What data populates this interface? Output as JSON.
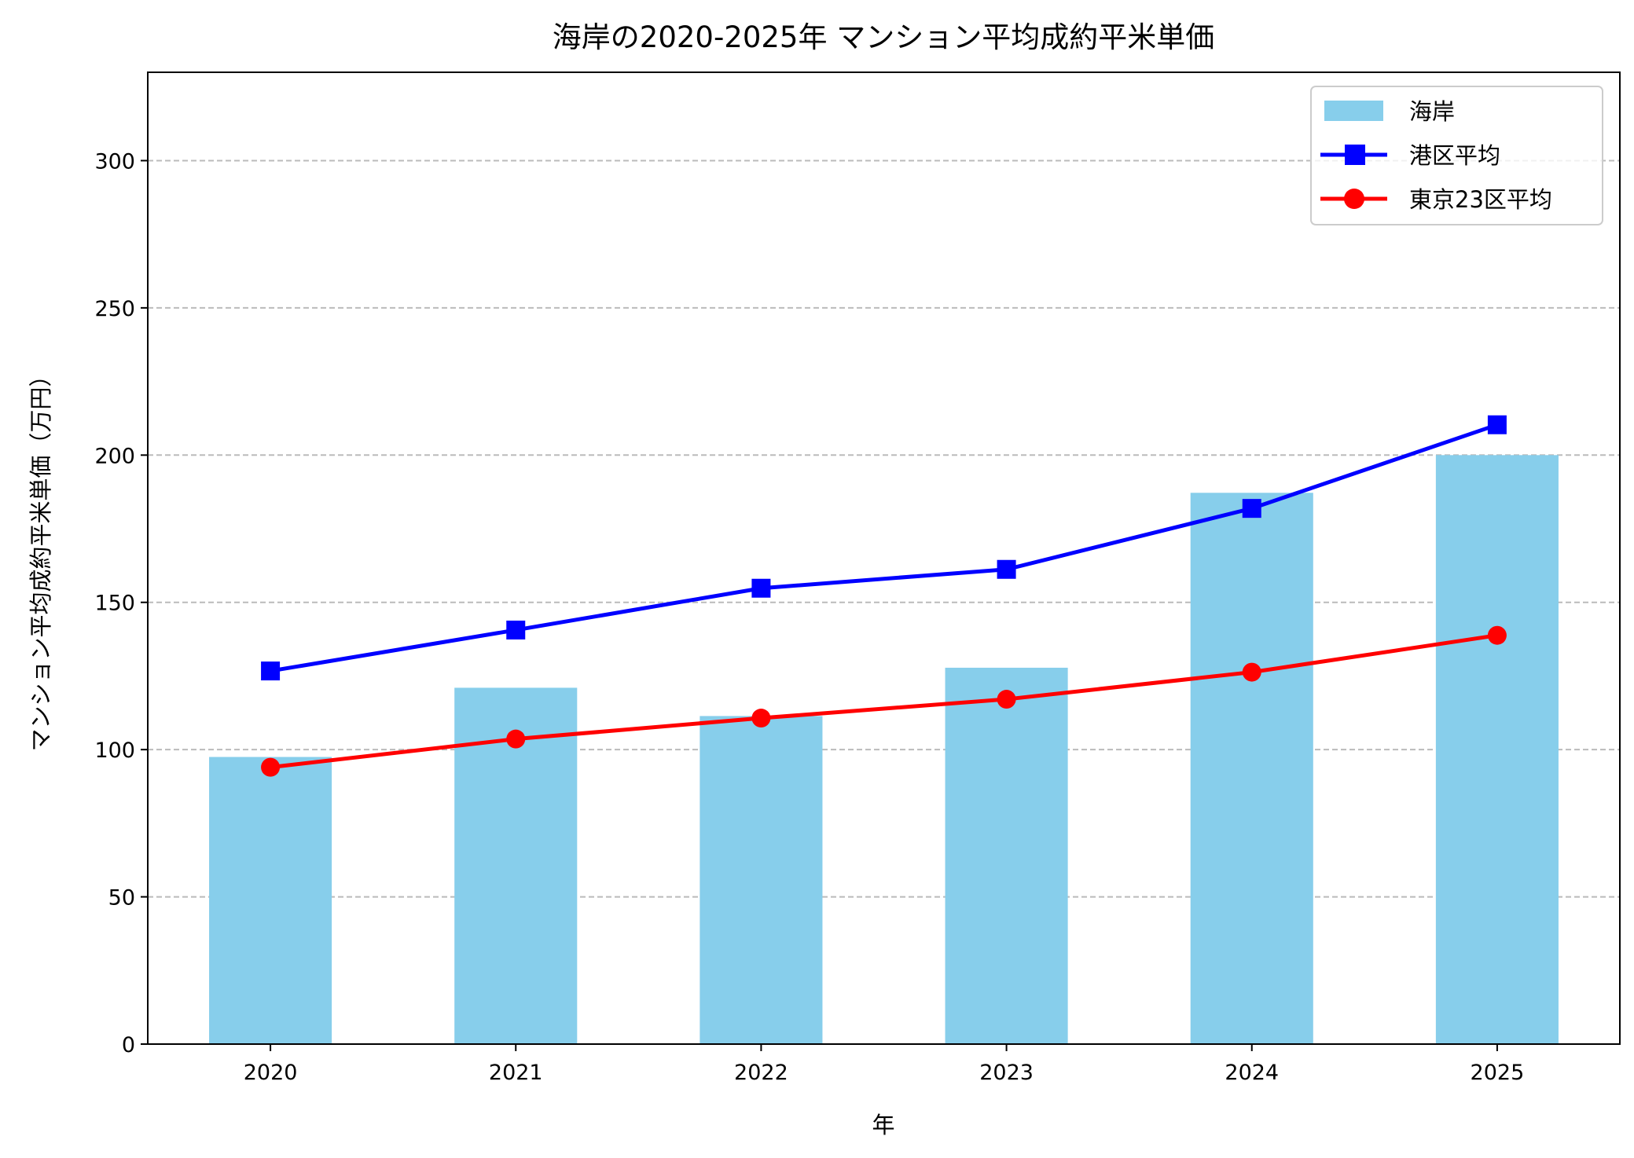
{
  "chart_data": {
    "type": "bar+line",
    "title": "海岸の2020-2025年 マンション平均成約平米単価",
    "xlabel": "年",
    "ylabel": "マンション平均成約平米単価（万円）",
    "categories": [
      "2020",
      "2021",
      "2022",
      "2023",
      "2024",
      "2025"
    ],
    "ylim": [
      0,
      330
    ],
    "yticks": [
      0,
      50,
      100,
      150,
      200,
      250,
      300
    ],
    "grid": "y-dashed",
    "legend_position": "top-right",
    "series": [
      {
        "name": "海岸",
        "kind": "bar",
        "color": "#87CEEB",
        "values": [
          97.5,
          121.0,
          111.4,
          127.8,
          187.2,
          200.0
        ]
      },
      {
        "name": "港区平均",
        "kind": "line",
        "marker": "square",
        "color": "#0000FF",
        "values": [
          126.7,
          140.6,
          154.8,
          161.2,
          181.9,
          210.3
        ]
      },
      {
        "name": "東京23区平均",
        "kind": "line",
        "marker": "circle",
        "color": "#FF0000",
        "values": [
          94.0,
          103.6,
          110.7,
          117.1,
          126.3,
          138.8
        ]
      }
    ]
  }
}
